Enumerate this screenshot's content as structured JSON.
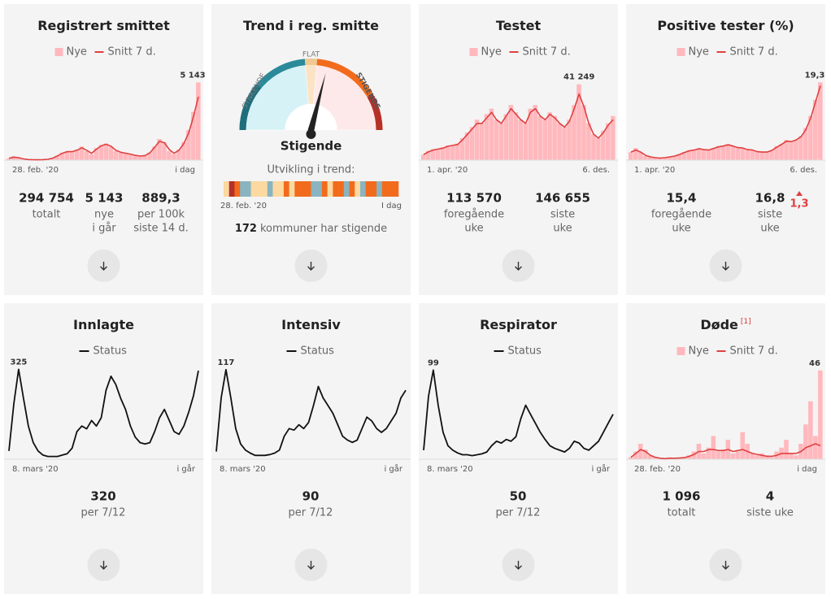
{
  "cards": [
    {
      "title": "Registrert smittet",
      "legend": [
        {
          "name": "Nye",
          "kind": "bar",
          "color": "#ffb8bd"
        },
        {
          "name": "Snitt 7 d.",
          "kind": "line",
          "color": "#e04040"
        }
      ],
      "chart": {
        "type": "bar_line",
        "ylim": [
          0,
          5600
        ],
        "start_label": "28. feb. '20",
        "end_label": "i dag",
        "peak_label": "5 143",
        "bars": [
          100,
          250,
          150,
          60,
          30,
          20,
          20,
          30,
          60,
          150,
          300,
          500,
          600,
          550,
          700,
          900,
          600,
          400,
          800,
          1000,
          1100,
          900,
          600,
          500,
          450,
          400,
          300,
          250,
          300,
          500,
          900,
          1400,
          1200,
          600,
          400,
          700,
          1200,
          2000,
          3200,
          5143
        ],
        "line": [
          120,
          200,
          160,
          80,
          40,
          25,
          22,
          30,
          55,
          130,
          280,
          450,
          560,
          560,
          650,
          820,
          650,
          450,
          720,
          950,
          1050,
          920,
          650,
          520,
          460,
          400,
          320,
          270,
          300,
          480,
          850,
          1250,
          1150,
          700,
          450,
          650,
          1100,
          1800,
          2900,
          4200
        ]
      },
      "stats": [
        {
          "value": "294 754",
          "label": [
            "totalt"
          ]
        },
        {
          "value": "5 143",
          "label": [
            "nye",
            "i går"
          ]
        },
        {
          "value": "889,3",
          "label": [
            "per 100k",
            "siste 14 d."
          ]
        }
      ]
    },
    {
      "title": "Trend i reg. smitte",
      "gauge": {
        "left": "SYNKENDE",
        "flat": "FLAT",
        "right": "STIGENDE",
        "status": "Stigende"
      },
      "trend_title": "Utvikling i trend:",
      "start_label": "28. feb. '20",
      "end_label": "I dag",
      "trend_colors": [
        "#fcd9a0",
        "#b5302a",
        "#f26b1d",
        "#8ab4c0",
        "#8ab4c0",
        "#fcd9a0",
        "#fcd9a0",
        "#fcd9a0",
        "#8ab4c0",
        "#fcd9a0",
        "#fcd9a0",
        "#f26b1d",
        "#fcd9a0",
        "#f26b1d",
        "#f26b1d",
        "#f26b1d",
        "#8ab4c0",
        "#8ab4c0",
        "#f26b1d",
        "#fcd9a0",
        "#f26b1d",
        "#f26b1d",
        "#8ab4c0",
        "#f26b1d",
        "#fcd9a0",
        "#8ab4c0",
        "#f26b1d",
        "#f26b1d",
        "#8ab4c0",
        "#f26b1d",
        "#f26b1d",
        "#f26b1d"
      ],
      "count": 172,
      "count_text": "kommuner har stigende"
    },
    {
      "title": "Testet",
      "legend": [
        {
          "name": "Nye",
          "kind": "bar",
          "color": "#ffb8bd"
        },
        {
          "name": "Snitt 7 d.",
          "kind": "line",
          "color": "#e04040"
        }
      ],
      "chart": {
        "type": "bar_line",
        "ylim": [
          0,
          46000
        ],
        "start_label": "1. apr. '20",
        "end_label": "6. des.",
        "peak_label": "41 249",
        "bars": [
          3000,
          5000,
          6000,
          6000,
          7000,
          8000,
          8000,
          9000,
          12000,
          15000,
          18000,
          22000,
          20000,
          25000,
          28000,
          22000,
          20000,
          25000,
          30000,
          26000,
          22000,
          20000,
          28000,
          30000,
          24000,
          22000,
          26000,
          24000,
          20000,
          18000,
          22000,
          30000,
          41249,
          30000,
          20000,
          14000,
          12000,
          16000,
          20000,
          24000
        ],
        "line": [
          3000,
          4500,
          5500,
          6000,
          6500,
          7500,
          8000,
          8500,
          11000,
          14000,
          17000,
          20000,
          20000,
          23000,
          26000,
          22000,
          20000,
          24000,
          28000,
          25000,
          22000,
          20000,
          26000,
          28000,
          24000,
          22000,
          25000,
          23000,
          20000,
          18000,
          21000,
          28000,
          36000,
          29000,
          20000,
          14000,
          12000,
          15000,
          19000,
          22000
        ]
      },
      "stats": [
        {
          "value": "113 570",
          "label": [
            "foregående",
            "uke"
          ]
        },
        {
          "value": "146 655",
          "label": [
            "siste",
            "uke"
          ]
        }
      ]
    },
    {
      "title": "Positive tester (%)",
      "legend": [
        {
          "name": "Nye",
          "kind": "bar",
          "color": "#ffb8bd"
        },
        {
          "name": "Snitt 7 d.",
          "kind": "line",
          "color": "#e04040"
        }
      ],
      "chart": {
        "type": "bar_line",
        "ylim": [
          0,
          21
        ],
        "start_label": "1. apr. '20",
        "end_label": "6. des.",
        "peak_label": "19,3",
        "bars": [
          2,
          3,
          2,
          1,
          0.8,
          0.5,
          0.5,
          0.6,
          0.8,
          1,
          1.5,
          2,
          2.5,
          2.5,
          3,
          2.5,
          2.5,
          3,
          3.5,
          3.5,
          4,
          3.5,
          3,
          3,
          2.5,
          2.5,
          2,
          2,
          2,
          2.5,
          3.5,
          4,
          5,
          4.5,
          5,
          6,
          8,
          11,
          15,
          19.3
        ],
        "line": [
          2,
          2.5,
          2,
          1.2,
          0.8,
          0.6,
          0.5,
          0.6,
          0.8,
          1,
          1.4,
          1.9,
          2.3,
          2.5,
          2.8,
          2.6,
          2.5,
          2.9,
          3.3,
          3.5,
          3.8,
          3.5,
          3.1,
          3,
          2.6,
          2.5,
          2.1,
          2,
          2,
          2.4,
          3.2,
          3.9,
          4.7,
          4.6,
          5,
          5.8,
          7.6,
          10.5,
          14.5,
          18.5
        ]
      },
      "stats": [
        {
          "value": "15,4",
          "label": [
            "foregående",
            "uke"
          ]
        },
        {
          "value": "16,8",
          "label": [
            "siste",
            "uke"
          ]
        }
      ],
      "delta": "1,3"
    },
    {
      "title": "Innlagte",
      "legend": [
        {
          "name": "Status",
          "kind": "line",
          "color": "#111"
        }
      ],
      "chart": {
        "type": "line",
        "ylim": [
          0,
          335
        ],
        "start_label": "8. mars '20",
        "end_label": "i går",
        "peak_label": "325",
        "line": [
          30,
          200,
          325,
          220,
          120,
          60,
          30,
          15,
          10,
          10,
          10,
          15,
          20,
          40,
          100,
          120,
          110,
          140,
          120,
          150,
          250,
          300,
          270,
          220,
          180,
          120,
          80,
          60,
          55,
          60,
          100,
          150,
          180,
          140,
          100,
          90,
          120,
          170,
          230,
          320
        ]
      },
      "stats": [
        {
          "value": "320",
          "label": [
            "per 7/12"
          ]
        }
      ]
    },
    {
      "title": "Intensiv",
      "legend": [
        {
          "name": "Status",
          "kind": "line",
          "color": "#111"
        }
      ],
      "chart": {
        "type": "line",
        "ylim": [
          0,
          121
        ],
        "start_label": "8. mars '20",
        "end_label": "i går",
        "peak_label": "117",
        "line": [
          10,
          80,
          117,
          80,
          40,
          20,
          12,
          8,
          5,
          5,
          5,
          6,
          8,
          12,
          30,
          40,
          38,
          45,
          40,
          48,
          70,
          95,
          80,
          70,
          60,
          45,
          30,
          25,
          22,
          25,
          40,
          55,
          50,
          40,
          35,
          40,
          50,
          60,
          80,
          90
        ]
      },
      "stats": [
        {
          "value": "90",
          "label": [
            "per 7/12"
          ]
        }
      ]
    },
    {
      "title": "Respirator",
      "legend": [
        {
          "name": "Status",
          "kind": "line",
          "color": "#111"
        }
      ],
      "chart": {
        "type": "line",
        "ylim": [
          0,
          103
        ],
        "start_label": "8. mars '20",
        "end_label": "i går",
        "peak_label": "99",
        "line": [
          10,
          70,
          99,
          60,
          30,
          15,
          10,
          7,
          5,
          5,
          4,
          5,
          6,
          8,
          15,
          20,
          18,
          22,
          20,
          25,
          45,
          60,
          50,
          40,
          30,
          22,
          15,
          12,
          10,
          8,
          12,
          20,
          18,
          12,
          10,
          15,
          20,
          30,
          40,
          50
        ]
      },
      "stats": [
        {
          "value": "50",
          "label": [
            "per 7/12"
          ]
        }
      ]
    },
    {
      "title": "Døde",
      "note": "[1]",
      "legend": [
        {
          "name": "Nye",
          "kind": "bar",
          "color": "#ffb8bd"
        },
        {
          "name": "Snitt 7 d.",
          "kind": "line",
          "color": "#e04040"
        }
      ],
      "chart": {
        "type": "bar_line",
        "ylim": [
          0,
          48
        ],
        "start_label": "28. feb. '20",
        "end_label": "i dag",
        "peak_label": "46",
        "bars": [
          1,
          4,
          8,
          5,
          2,
          1,
          0,
          0,
          1,
          0,
          1,
          1,
          2,
          4,
          8,
          3,
          6,
          12,
          4,
          5,
          10,
          3,
          4,
          14,
          8,
          3,
          2,
          3,
          2,
          1,
          4,
          6,
          10,
          3,
          2,
          8,
          18,
          30,
          12,
          46
        ],
        "line": [
          1,
          3,
          5,
          4,
          2,
          1,
          0.5,
          0.3,
          0.5,
          0.5,
          0.6,
          0.8,
          1.5,
          2.5,
          4,
          4,
          5,
          5,
          4.5,
          4.5,
          5,
          4,
          4.5,
          5,
          4,
          3,
          2.5,
          2,
          1.5,
          1.5,
          2,
          3,
          3,
          3,
          3,
          4,
          6,
          7,
          8,
          7
        ]
      },
      "stats": [
        {
          "value": "1 096",
          "label": [
            "totalt"
          ]
        },
        {
          "value": "4",
          "label": [
            "siste uke"
          ]
        }
      ]
    }
  ]
}
